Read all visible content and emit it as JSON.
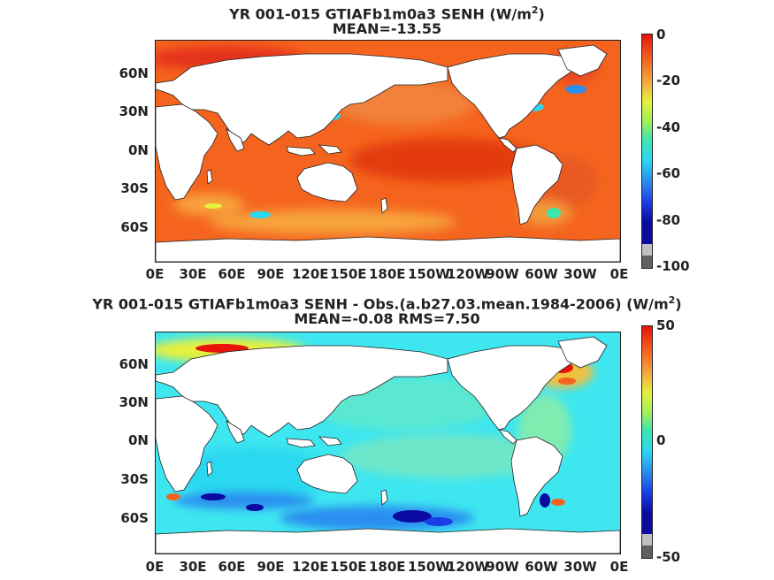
{
  "panels": [
    {
      "title_text": "YR 001-015 GTIAFb1m0a3  SENH (W/m",
      "title_unit_sup": "2",
      "title_close": ")",
      "stat_line": "MEAN=-13.55",
      "colorbar_labels": [
        "0",
        "-20",
        "-40",
        "-60",
        "-80",
        "-100"
      ],
      "colorbar_range": [
        -100,
        0
      ]
    },
    {
      "title_text": "YR 001-015 GTIAFb1m0a3 SENH - Obs.(a.b27.03.mean.1984-2006) (W/m",
      "title_unit_sup": "2",
      "title_close": ")",
      "stat_line": "MEAN=-0.08 RMS=7.50",
      "colorbar_labels": [
        "50",
        "0",
        "-50"
      ],
      "colorbar_range": [
        -50,
        50
      ]
    }
  ],
  "lat_labels": [
    "60N",
    "30N",
    "0N",
    "30S",
    "60S"
  ],
  "lon_labels": [
    "0E",
    "30E",
    "60E",
    "90E",
    "120E",
    "150E",
    "180E",
    "150W",
    "120W",
    "90W",
    "60W",
    "30W",
    "0E"
  ],
  "colors": {
    "panel1_ocean": "#f5641e",
    "panel2_ocean": "#3ee6f0",
    "land": "#ffffff"
  }
}
